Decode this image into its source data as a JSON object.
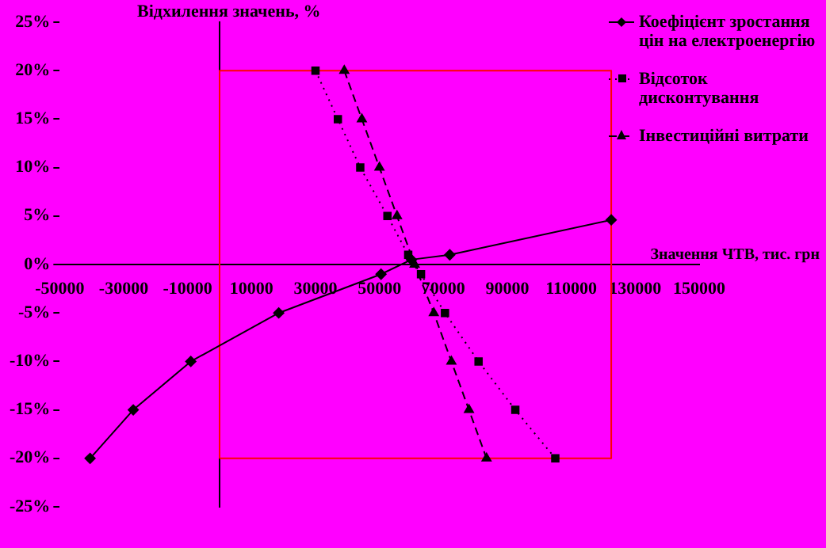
{
  "chart_data": {
    "type": "line",
    "xlabel": "Значення ЧТВ, тис. грн",
    "ylabel": "Відхилення значень, %",
    "xlim": [
      -50000,
      150000
    ],
    "xticks": [
      -50000,
      -30000,
      -10000,
      10000,
      30000,
      50000,
      70000,
      90000,
      110000,
      130000,
      150000
    ],
    "ylim": [
      -25,
      25
    ],
    "yticks": [
      {
        "value": -25,
        "label": "-25%"
      },
      {
        "value": -20,
        "label": "-20%"
      },
      {
        "value": -15,
        "label": "-15%"
      },
      {
        "value": -10,
        "label": "-10%"
      },
      {
        "value": -5,
        "label": "-5%"
      },
      {
        "value": 0,
        "label": "0%"
      },
      {
        "value": 5,
        "label": "5%"
      },
      {
        "value": 10,
        "label": "10%"
      },
      {
        "value": 15,
        "label": "15%"
      },
      {
        "value": 20,
        "label": "20%"
      },
      {
        "value": 25,
        "label": "25%"
      }
    ],
    "grid": false,
    "legend": "right",
    "series": [
      {
        "name": "Коефіцієнт зростання цін на електроенергію",
        "color": "#000000",
        "marker": "diamond",
        "line_style": "solid",
        "x": [
          -40500,
          -27000,
          -9000,
          18500,
          50500,
          60000,
          72000,
          122500
        ],
        "values": [
          -20,
          -15,
          -10,
          -5,
          -1,
          0.5,
          1,
          4.6
        ]
      },
      {
        "name": "Відсоток дисконтування",
        "color": "#000000",
        "marker": "square",
        "line_style": "dotted",
        "x": [
          30000,
          37000,
          44000,
          52500,
          59000,
          63000,
          70500,
          81000,
          92500,
          105000
        ],
        "values": [
          20,
          15,
          10,
          5,
          1,
          -1,
          -5,
          -10,
          -15,
          -20
        ]
      },
      {
        "name": "Інвестиційні витрати",
        "color": "#000000",
        "marker": "triangle",
        "line_style": "dashed",
        "x": [
          39000,
          44500,
          50000,
          55500,
          61000,
          67000,
          72500,
          78000,
          83500
        ],
        "values": [
          20,
          15,
          10,
          5,
          0,
          -5,
          -10,
          -15,
          -20
        ]
      },
      {
        "color": "#ff0000",
        "marker": "none",
        "line_style": "solid",
        "x": [
          0,
          0,
          122500,
          122500
        ],
        "values": [
          -20,
          20,
          20,
          -20
        ]
      },
      {
        "color": "#ff0000",
        "marker": "none",
        "line_style": "solid",
        "x": [
          0,
          122500
        ],
        "values": [
          -20,
          -20
        ]
      }
    ]
  }
}
